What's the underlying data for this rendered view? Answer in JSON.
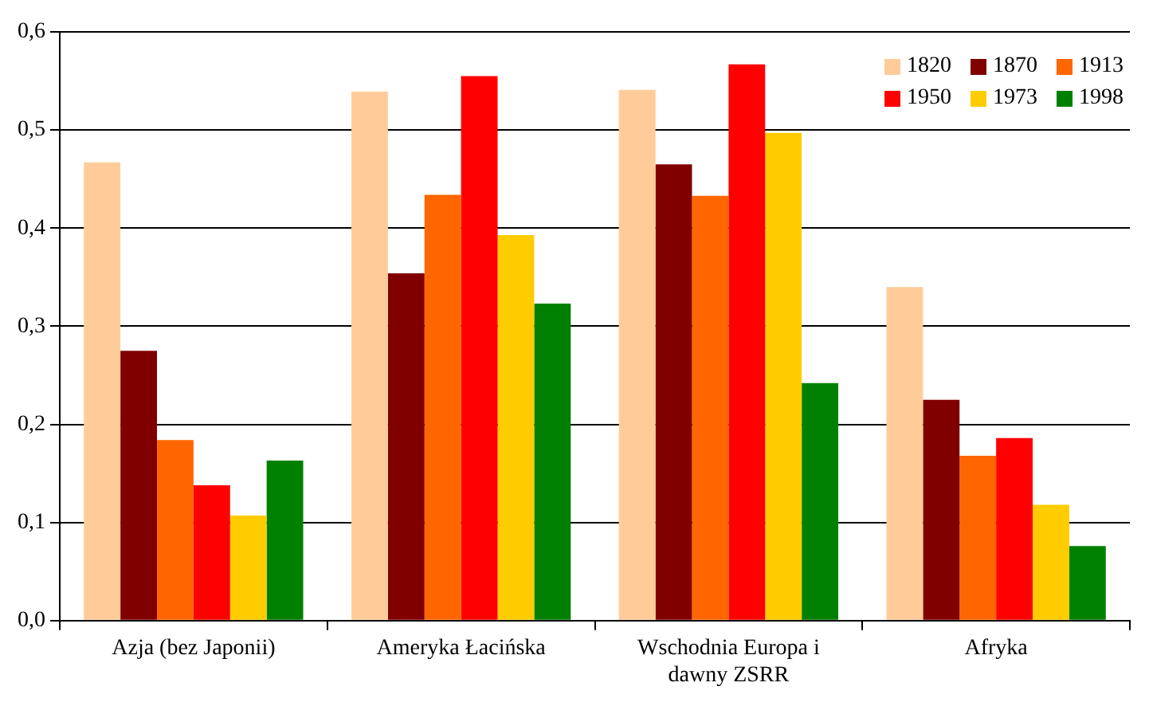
{
  "chart_data": {
    "type": "bar",
    "categories": [
      "Azja (bez Japonii)",
      "Ameryka Łacińska",
      "Wschodnia Europa i dawny ZSRR",
      "Afryka"
    ],
    "series": [
      {
        "name": "1820",
        "color": "#ffcc99",
        "values": [
          0.467,
          0.539,
          0.541,
          0.34
        ]
      },
      {
        "name": "1870",
        "color": "#800000",
        "values": [
          0.275,
          0.354,
          0.465,
          0.225
        ]
      },
      {
        "name": "1913",
        "color": "#ff6600",
        "values": [
          0.184,
          0.434,
          0.433,
          0.168
        ]
      },
      {
        "name": "1950",
        "color": "#ff0000",
        "values": [
          0.138,
          0.555,
          0.567,
          0.186
        ]
      },
      {
        "name": "1973",
        "color": "#ffcc00",
        "values": [
          0.107,
          0.393,
          0.497,
          0.118
        ]
      },
      {
        "name": "1998",
        "color": "#008000",
        "values": [
          0.163,
          0.323,
          0.242,
          0.076
        ]
      }
    ],
    "ylim": [
      0,
      0.6
    ],
    "yticks": [
      {
        "value": 0,
        "label": "0,0"
      },
      {
        "value": 0.1,
        "label": "0,1"
      },
      {
        "value": 0.2,
        "label": "0,2"
      },
      {
        "value": 0.3,
        "label": "0,3"
      },
      {
        "value": 0.4,
        "label": "0,4"
      },
      {
        "value": 0.5,
        "label": "0,5"
      },
      {
        "value": 0.6,
        "label": "0,6"
      }
    ],
    "grid": "y",
    "legend": "top right"
  }
}
